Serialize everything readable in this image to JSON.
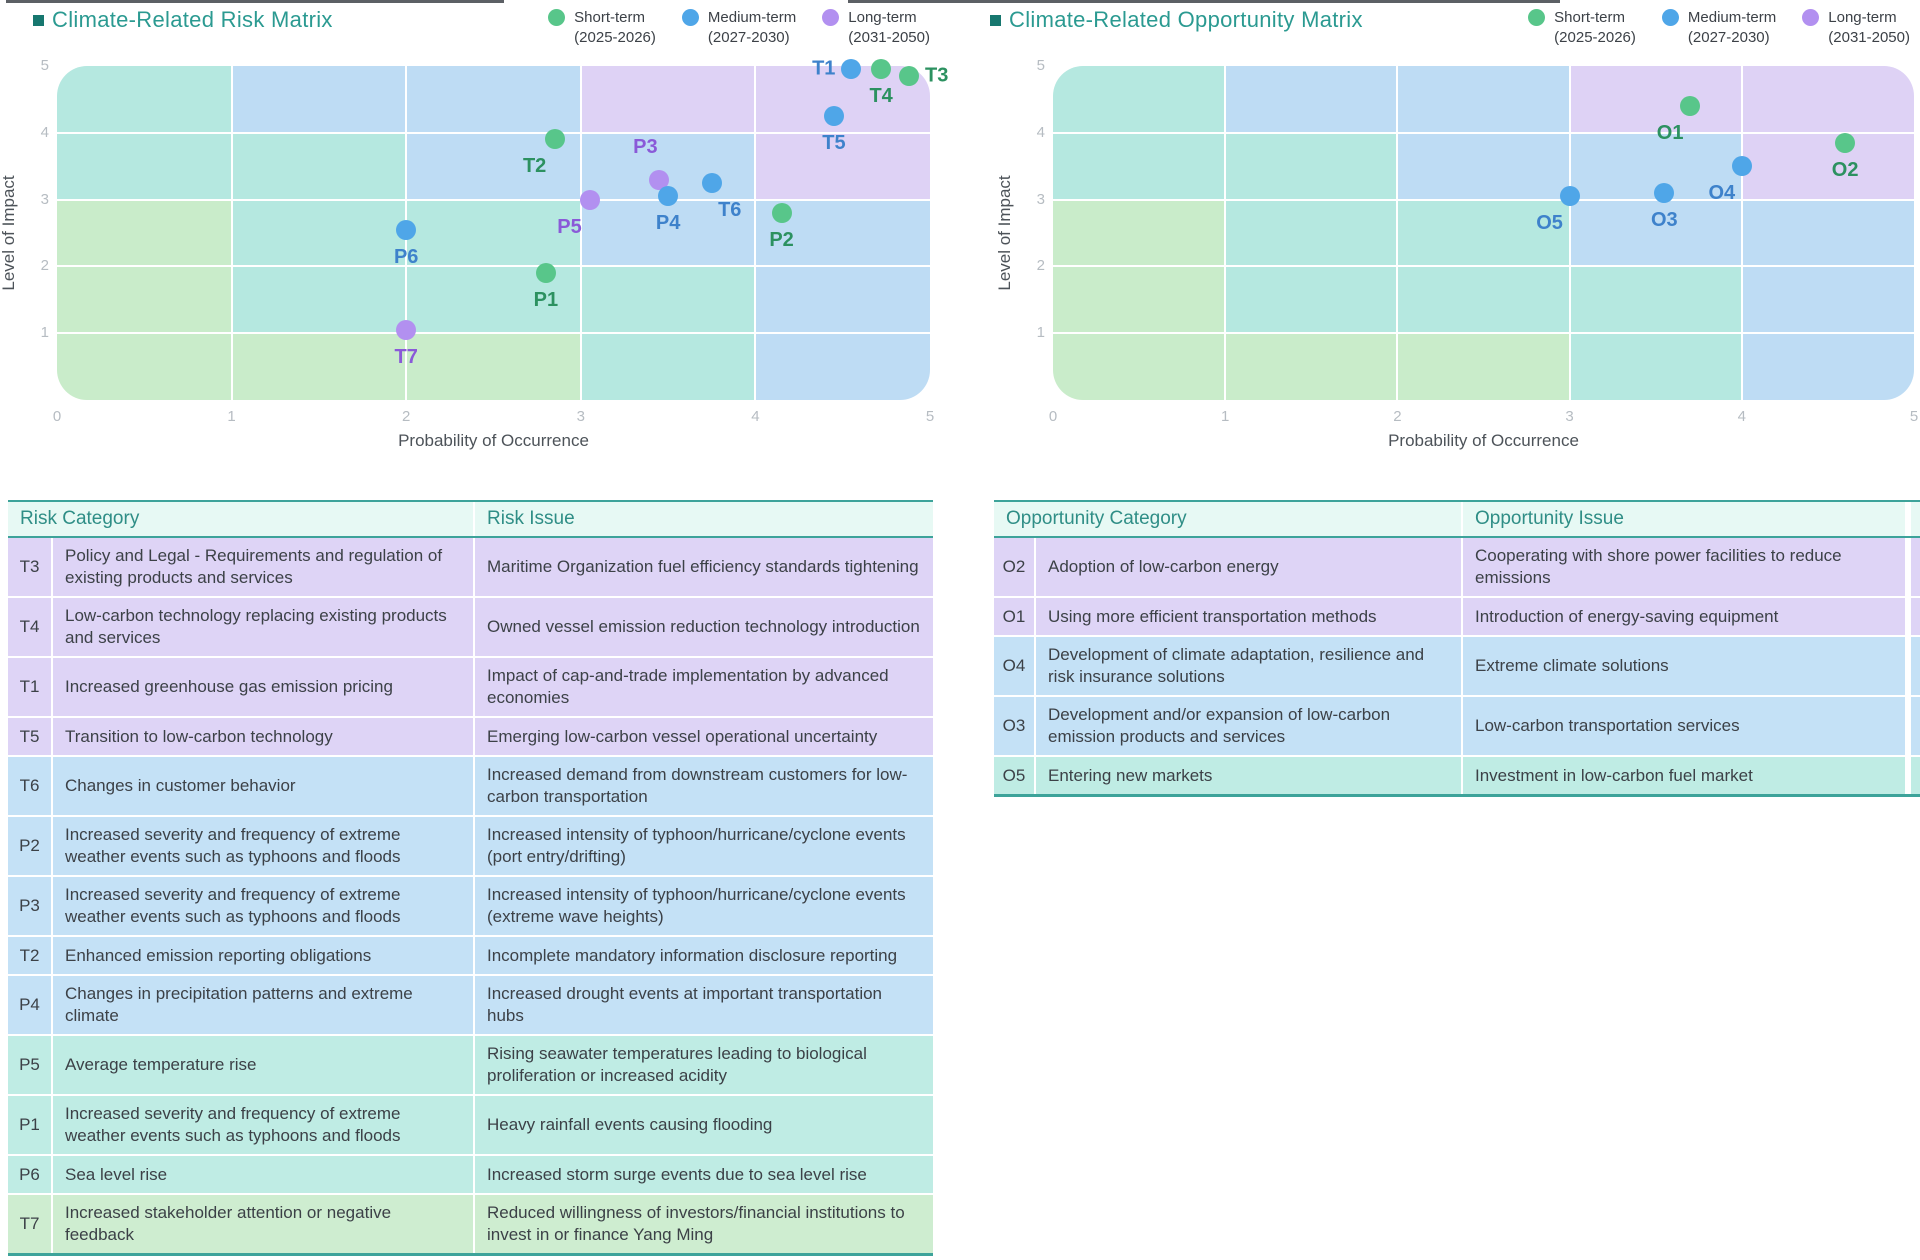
{
  "colors": {
    "title": "#2b9a91",
    "bullet": "#17776f",
    "border_teal": "#3da39a",
    "header_bg": "#e7f9f4",
    "header_text": "#2f8e86",
    "tick": "#b6bcc2",
    "axis_title": "#4d5359",
    "body_text": "#3c4147",
    "dot_short": "#58c68a",
    "dot_medium": "#4fa6e8",
    "dot_long": "#b290f0",
    "label_short": "#2c9160",
    "label_medium": "#3e82cb",
    "label_long": "#8a5ad8",
    "cell_green": "#c9ecca",
    "cell_teal": "#b5e8e0",
    "cell_blue": "#bedcf4",
    "cell_purple": "#ded2f5",
    "row_purple": "#ded4f6",
    "row_blue": "#c4e1f6",
    "row_teal": "#bfece4",
    "row_green": "#ceedd0"
  },
  "legend": {
    "items": [
      {
        "label": "Short-term",
        "range": "(2025-2026)",
        "period": "short"
      },
      {
        "label": "Medium-term",
        "range": "(2027-2030)",
        "period": "medium"
      },
      {
        "label": "Long-term",
        "range": "(2031-2050)",
        "period": "long"
      }
    ]
  },
  "chart_data": [
    {
      "type": "scatter",
      "title": "Climate-Related Risk Matrix",
      "xlabel": "Probability of Occurrence",
      "ylabel": "Level of Impact",
      "xlim": [
        0,
        5
      ],
      "ylim": [
        0,
        5
      ],
      "x_ticks": [
        "0",
        "1",
        "2",
        "3",
        "4",
        "5"
      ],
      "y_ticks": [
        "5",
        "4",
        "3",
        "2",
        "1"
      ],
      "grid_on": true,
      "legend_position": "top-right",
      "grid_rows_top_to_bottom": [
        [
          "teal",
          "blue",
          "blue",
          "purple",
          "purple"
        ],
        [
          "teal",
          "teal",
          "blue",
          "blue",
          "purple"
        ],
        [
          "green",
          "teal",
          "teal",
          "blue",
          "blue"
        ],
        [
          "green",
          "teal",
          "teal",
          "teal",
          "blue"
        ],
        [
          "green",
          "green",
          "green",
          "teal",
          "blue"
        ]
      ],
      "points": [
        {
          "id": "T1",
          "x": 4.55,
          "y": 4.95,
          "period": "medium",
          "label_pos": "left"
        },
        {
          "id": "T4",
          "x": 4.72,
          "y": 4.95,
          "period": "short",
          "label_pos": "below"
        },
        {
          "id": "T3",
          "x": 4.88,
          "y": 4.85,
          "period": "short",
          "label_pos": "right"
        },
        {
          "id": "T5",
          "x": 4.45,
          "y": 4.25,
          "period": "medium",
          "label_pos": "below"
        },
        {
          "id": "T2",
          "x": 2.85,
          "y": 3.9,
          "period": "short",
          "label_pos": "below-left"
        },
        {
          "id": "P3",
          "x": 3.45,
          "y": 3.3,
          "period": "long",
          "label_pos": "above"
        },
        {
          "id": "T6",
          "x": 3.75,
          "y": 3.25,
          "period": "medium",
          "label_pos": "below-right"
        },
        {
          "id": "P4",
          "x": 3.5,
          "y": 3.05,
          "period": "medium",
          "label_pos": "below"
        },
        {
          "id": "P5",
          "x": 3.05,
          "y": 3.0,
          "period": "long",
          "label_pos": "below-left"
        },
        {
          "id": "P2",
          "x": 4.15,
          "y": 2.8,
          "period": "short",
          "label_pos": "below"
        },
        {
          "id": "P6",
          "x": 2.0,
          "y": 2.55,
          "period": "medium",
          "label_pos": "below"
        },
        {
          "id": "P1",
          "x": 2.8,
          "y": 1.9,
          "period": "short",
          "label_pos": "below"
        },
        {
          "id": "T7",
          "x": 2.0,
          "y": 1.05,
          "period": "long",
          "label_pos": "below"
        }
      ]
    },
    {
      "type": "scatter",
      "title": "Climate-Related Opportunity Matrix",
      "xlabel": "Probability of Occurrence",
      "ylabel": "Level of Impact",
      "xlim": [
        0,
        5
      ],
      "ylim": [
        0,
        5
      ],
      "x_ticks": [
        "0",
        "1",
        "2",
        "3",
        "4",
        "5"
      ],
      "y_ticks": [
        "5",
        "4",
        "3",
        "2",
        "1"
      ],
      "grid_on": true,
      "legend_position": "top-right",
      "grid_rows_top_to_bottom": [
        [
          "teal",
          "blue",
          "blue",
          "purple",
          "purple"
        ],
        [
          "teal",
          "teal",
          "blue",
          "blue",
          "purple"
        ],
        [
          "green",
          "teal",
          "teal",
          "blue",
          "blue"
        ],
        [
          "green",
          "teal",
          "teal",
          "teal",
          "blue"
        ],
        [
          "green",
          "green",
          "green",
          "teal",
          "blue"
        ]
      ],
      "points": [
        {
          "id": "O1",
          "x": 3.7,
          "y": 4.4,
          "period": "short",
          "label_pos": "below-left"
        },
        {
          "id": "O2",
          "x": 4.6,
          "y": 3.85,
          "period": "short",
          "label_pos": "below"
        },
        {
          "id": "O4",
          "x": 4.0,
          "y": 3.5,
          "period": "medium",
          "label_pos": "below-left"
        },
        {
          "id": "O3",
          "x": 3.55,
          "y": 3.1,
          "period": "medium",
          "label_pos": "below"
        },
        {
          "id": "O5",
          "x": 3.0,
          "y": 3.05,
          "period": "medium",
          "label_pos": "below-left"
        }
      ]
    }
  ],
  "tables": [
    {
      "headers": [
        "Risk Category",
        "Risk Issue"
      ],
      "rows": [
        {
          "id": "T3",
          "category": "Policy and Legal - Requirements and regulation of existing products and services",
          "issue": "Maritime Organization fuel efficiency standards tightening",
          "color": "purple"
        },
        {
          "id": "T4",
          "category": "Low-carbon technology replacing existing products and services",
          "issue": "Owned vessel emission reduction technology introduction",
          "color": "purple"
        },
        {
          "id": "T1",
          "category": "Increased greenhouse gas emission pricing",
          "issue": "Impact of cap-and-trade implementation by advanced economies",
          "color": "purple"
        },
        {
          "id": "T5",
          "category": "Transition to low-carbon technology",
          "issue": "Emerging low-carbon vessel operational uncertainty",
          "color": "purple"
        },
        {
          "id": "T6",
          "category": "Changes in customer behavior",
          "issue": "Increased demand from downstream customers for low-carbon transportation",
          "color": "blue"
        },
        {
          "id": "P2",
          "category": "Increased severity and frequency of extreme weather events such as typhoons and floods",
          "issue": "Increased intensity of typhoon/hurricane/cyclone events (port entry/drifting)",
          "color": "blue"
        },
        {
          "id": "P3",
          "category": "Increased severity and frequency of extreme weather events such as typhoons and floods",
          "issue": "Increased intensity of typhoon/hurricane/cyclone events (extreme wave heights)",
          "color": "blue"
        },
        {
          "id": "T2",
          "category": "Enhanced emission reporting obligations",
          "issue": "Incomplete mandatory information disclosure reporting",
          "color": "blue"
        },
        {
          "id": "P4",
          "category": "Changes in precipitation patterns and extreme climate",
          "issue": "Increased drought events at important transportation hubs",
          "color": "blue"
        },
        {
          "id": "P5",
          "category": "Average temperature rise",
          "issue": "Rising seawater temperatures leading to biological proliferation or increased acidity",
          "color": "teal"
        },
        {
          "id": "P1",
          "category": "Increased severity and frequency of extreme weather events such as typhoons and floods",
          "issue": "Heavy rainfall events causing flooding",
          "color": "teal"
        },
        {
          "id": "P6",
          "category": "Sea level rise",
          "issue": "Increased storm surge events due to sea level rise",
          "color": "teal"
        },
        {
          "id": "T7",
          "category": "Increased stakeholder attention or negative feedback",
          "issue": "Reduced willingness of investors/financial institutions to invest in or finance Yang Ming",
          "color": "green"
        }
      ]
    },
    {
      "headers": [
        "Opportunity Category",
        "Opportunity Issue"
      ],
      "rows": [
        {
          "id": "O2",
          "category": "Adoption of low-carbon energy",
          "issue": "Cooperating with shore power facilities to reduce emissions",
          "color": "purple"
        },
        {
          "id": "O1",
          "category": "Using more efficient transportation methods",
          "issue": "Introduction of energy-saving equipment",
          "color": "purple"
        },
        {
          "id": "O4",
          "category": "Development of climate adaptation, resilience and risk insurance solutions",
          "issue": "Extreme climate solutions",
          "color": "blue"
        },
        {
          "id": "O3",
          "category": "Development and/or expansion of low-carbon emission products and services",
          "issue": "Low-carbon transportation services",
          "color": "blue"
        },
        {
          "id": "O5",
          "category": "Entering new markets",
          "issue": "Investment in low-carbon fuel market",
          "color": "teal"
        }
      ]
    }
  ]
}
